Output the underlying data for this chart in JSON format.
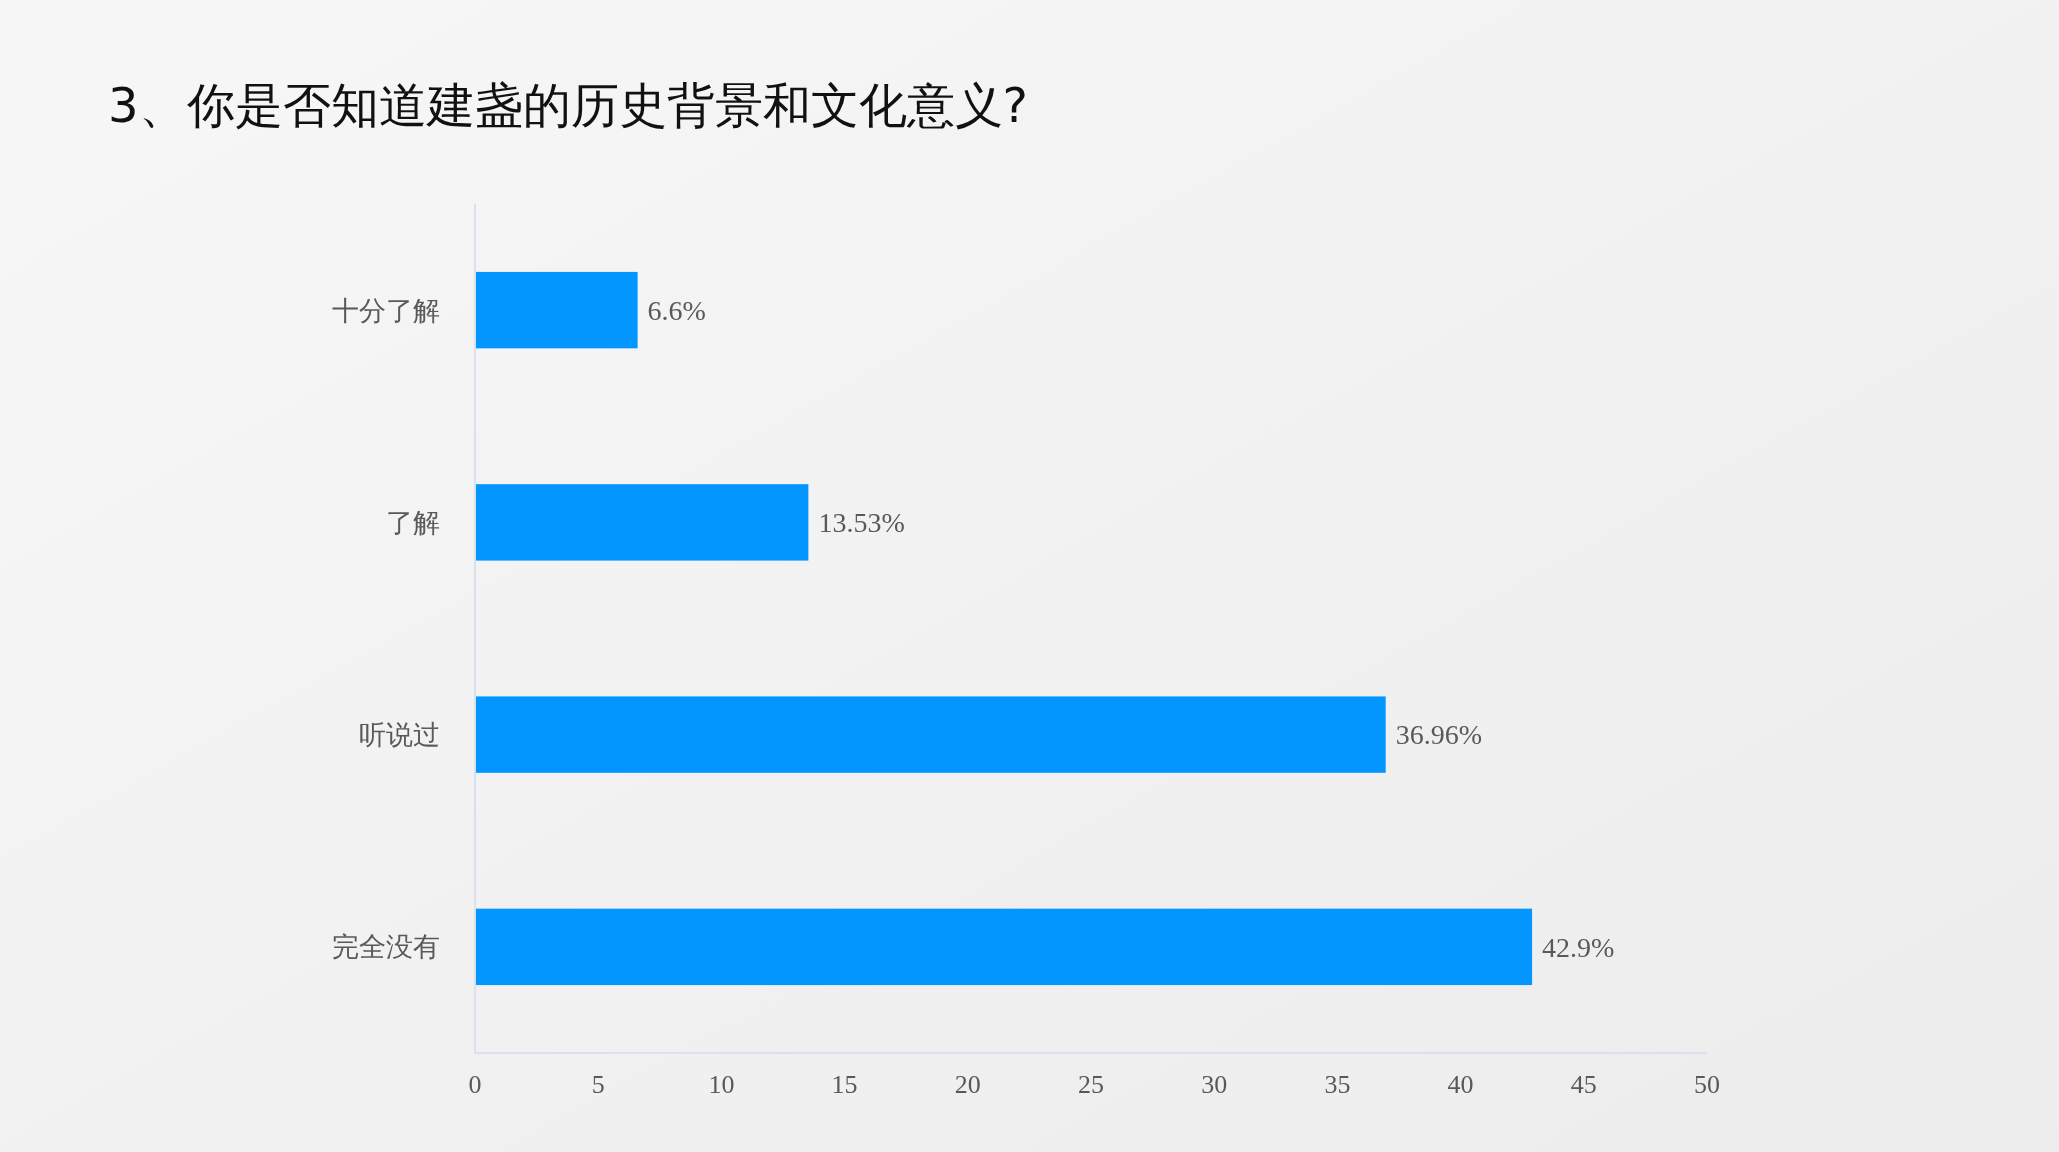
{
  "chart_data": {
    "type": "bar",
    "orientation": "horizontal",
    "title": "3、你是否知道建盏的历史背景和文化意义?",
    "categories": [
      "十分了解",
      "了解",
      "听说过",
      "完全没有"
    ],
    "values": [
      6.6,
      13.53,
      36.96,
      42.9
    ],
    "value_labels": [
      "6.6%",
      "13.53%",
      "36.96%",
      "42.9%"
    ],
    "color": "#0396ff",
    "xlim": [
      0,
      50
    ],
    "xticks": [
      0,
      5,
      10,
      15,
      20,
      25,
      30,
      35,
      40,
      45,
      50
    ],
    "grid": false
  }
}
